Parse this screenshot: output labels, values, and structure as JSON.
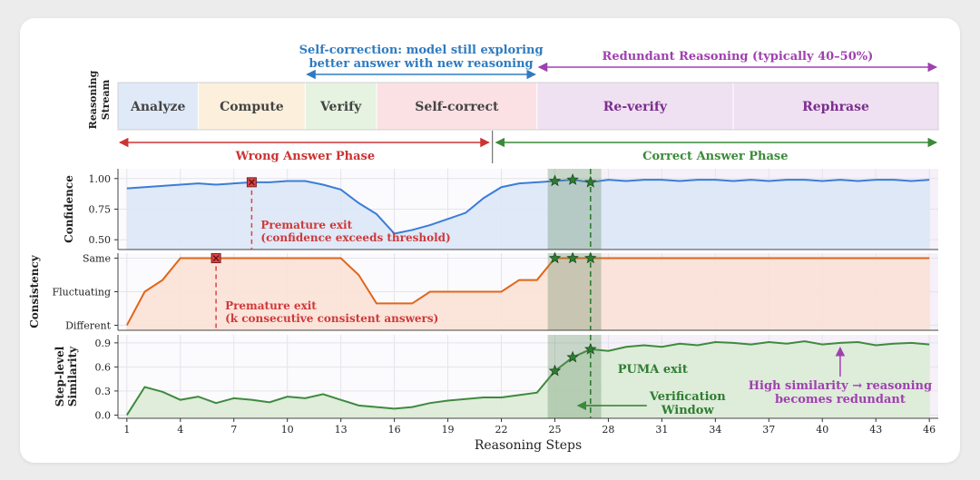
{
  "chart_data": {
    "type": "line",
    "xlabel": "Reasoning Steps",
    "x_ticks": [
      1,
      4,
      7,
      10,
      13,
      16,
      19,
      22,
      25,
      28,
      31,
      34,
      37,
      40,
      43,
      46
    ],
    "xlim": [
      0.5,
      46.5
    ],
    "stream": {
      "ylabel": "Reasoning Stream",
      "segments": [
        {
          "label": "Analyze",
          "start": 0.5,
          "end": 5.0,
          "fill": "#dfe9f7",
          "text_color": "#444444"
        },
        {
          "label": "Compute",
          "start": 5.0,
          "end": 11.0,
          "fill": "#fcefdc",
          "text_color": "#444444"
        },
        {
          "label": "Verify",
          "start": 11.0,
          "end": 15.0,
          "fill": "#e5f3e0",
          "text_color": "#444444"
        },
        {
          "label": "Self-correct",
          "start": 15.0,
          "end": 24.0,
          "fill": "#fbe1e4",
          "text_color": "#444444"
        },
        {
          "label": "Re-verify",
          "start": 24.0,
          "end": 35.0,
          "fill": "#efe1f2",
          "text_color": "#7b2d8e"
        },
        {
          "label": "Rephrase",
          "start": 35.0,
          "end": 46.5,
          "fill": "#efe1f2",
          "text_color": "#7b2d8e"
        }
      ],
      "top_annotations": [
        {
          "lines": [
            "Self-correction: model still exploring",
            "better answer with new reasoning"
          ],
          "color": "#2f7bc0",
          "arrow": [
            11.0,
            24.0
          ]
        },
        {
          "lines": [
            "Redundant Reasoning (typically 40–50%)"
          ],
          "color": "#a040b0",
          "arrow": [
            24.0,
            46.5
          ]
        }
      ],
      "phases": [
        {
          "label": "Wrong Answer Phase",
          "color": "#cc3333",
          "arrow": [
            0.5,
            21.5
          ]
        },
        {
          "label": "Correct Answer Phase",
          "color": "#3a8a3a",
          "arrow": [
            21.5,
            46.5
          ]
        }
      ],
      "phase_divider": 21.5
    },
    "verification_window": [
      24.6,
      27.6
    ],
    "vline_x": 27,
    "series": [
      {
        "name": "Confidence",
        "ylabel": "Confidence",
        "ylim": [
          0.42,
          1.08
        ],
        "ticks": [
          {
            "v": 0.5,
            "label": "0.50"
          },
          {
            "v": 0.75,
            "label": "0.75"
          },
          {
            "v": 1.0,
            "label": "1.00"
          }
        ],
        "color": "#3b7dd8",
        "fill": "#dbe7f6",
        "x": [
          1,
          2,
          3,
          4,
          5,
          6,
          7,
          8,
          9,
          10,
          11,
          12,
          13,
          14,
          15,
          16,
          17,
          18,
          19,
          20,
          21,
          22,
          23,
          24,
          25,
          26,
          27,
          28,
          29,
          30,
          31,
          32,
          33,
          34,
          35,
          36,
          37,
          38,
          39,
          40,
          41,
          42,
          43,
          44,
          45,
          46
        ],
        "values": [
          0.92,
          0.93,
          0.94,
          0.95,
          0.96,
          0.95,
          0.96,
          0.97,
          0.97,
          0.98,
          0.98,
          0.95,
          0.91,
          0.8,
          0.71,
          0.55,
          0.58,
          0.62,
          0.67,
          0.72,
          0.84,
          0.93,
          0.96,
          0.97,
          0.98,
          0.99,
          0.97,
          0.99,
          0.98,
          0.99,
          0.99,
          0.98,
          0.99,
          0.99,
          0.98,
          0.99,
          0.98,
          0.99,
          0.99,
          0.98,
          0.99,
          0.98,
          0.99,
          0.99,
          0.98,
          0.99
        ],
        "premature_exit": {
          "x": 8,
          "value": 0.97,
          "lines": [
            "Premature exit",
            "(confidence exceeds threshold)"
          ]
        },
        "stars": [
          {
            "x": 25,
            "value": 0.98
          },
          {
            "x": 26,
            "value": 0.99
          },
          {
            "x": 27,
            "value": 0.97
          }
        ]
      },
      {
        "name": "Consistency",
        "ylabel": "Consistency",
        "ylim": [
          -0.15,
          2.15
        ],
        "ticks": [
          {
            "v": 0,
            "label": "Different"
          },
          {
            "v": 1,
            "label": "Fluctuating"
          },
          {
            "v": 2,
            "label": "Same"
          }
        ],
        "color": "#e0661a",
        "fill": "#fbe1d6",
        "x": [
          1,
          2,
          3,
          4,
          5,
          6,
          7,
          8,
          9,
          10,
          11,
          12,
          13,
          14,
          15,
          16,
          17,
          18,
          19,
          20,
          21,
          22,
          23,
          24,
          25,
          26,
          27,
          28,
          29,
          30,
          31,
          32,
          33,
          34,
          35,
          36,
          37,
          38,
          39,
          40,
          41,
          42,
          43,
          44,
          45,
          46
        ],
        "values": [
          0,
          1,
          1.35,
          2,
          2,
          2,
          2,
          2,
          2,
          2,
          2,
          2,
          2,
          1.5,
          0.65,
          0.65,
          0.65,
          1,
          1,
          1,
          1,
          1,
          1.35,
          1.35,
          2,
          2,
          2,
          2,
          2,
          2,
          2,
          2,
          2,
          2,
          2,
          2,
          2,
          2,
          2,
          2,
          2,
          2,
          2,
          2,
          2,
          2
        ],
        "premature_exit": {
          "x": 6,
          "value": 2,
          "lines": [
            "Premature exit",
            "(k consecutive consistent answers)"
          ]
        },
        "stars": [
          {
            "x": 25,
            "value": 2
          },
          {
            "x": 26,
            "value": 2
          },
          {
            "x": 27,
            "value": 2
          }
        ]
      },
      {
        "name": "Step-level Similarity",
        "ylabel": [
          "Step-level",
          "Similarity"
        ],
        "ylim": [
          -0.04,
          1.0
        ],
        "ticks": [
          {
            "v": 0.0,
            "label": "0.0"
          },
          {
            "v": 0.3,
            "label": "0.3"
          },
          {
            "v": 0.6,
            "label": "0.6"
          },
          {
            "v": 0.9,
            "label": "0.9"
          }
        ],
        "color": "#3f8a3f",
        "fill": "#dcebd6",
        "x": [
          1,
          2,
          3,
          4,
          5,
          6,
          7,
          8,
          9,
          10,
          11,
          12,
          13,
          14,
          15,
          16,
          17,
          18,
          19,
          20,
          21,
          22,
          23,
          24,
          25,
          26,
          27,
          28,
          29,
          30,
          31,
          32,
          33,
          34,
          35,
          36,
          37,
          38,
          39,
          40,
          41,
          42,
          43,
          44,
          45,
          46
        ],
        "values": [
          0.0,
          0.35,
          0.29,
          0.19,
          0.23,
          0.15,
          0.21,
          0.19,
          0.16,
          0.23,
          0.21,
          0.26,
          0.19,
          0.12,
          0.1,
          0.08,
          0.1,
          0.15,
          0.18,
          0.2,
          0.22,
          0.22,
          0.25,
          0.28,
          0.55,
          0.72,
          0.82,
          0.8,
          0.85,
          0.87,
          0.85,
          0.89,
          0.87,
          0.91,
          0.9,
          0.88,
          0.91,
          0.89,
          0.92,
          0.88,
          0.9,
          0.91,
          0.87,
          0.89,
          0.9,
          0.88
        ],
        "stars": [
          {
            "x": 25,
            "value": 0.55
          },
          {
            "x": 26,
            "value": 0.72
          },
          {
            "x": 27,
            "value": 0.82
          }
        ],
        "annotations": [
          {
            "lines": [
              "PUMA exit"
            ],
            "color": "#2e7d32"
          },
          {
            "lines": [
              "Verification",
              "Window"
            ],
            "color": "#2e7d32"
          },
          {
            "lines": [
              "High similarity → reasoning",
              "becomes redundant"
            ],
            "color": "#a040b0"
          }
        ]
      }
    ]
  }
}
